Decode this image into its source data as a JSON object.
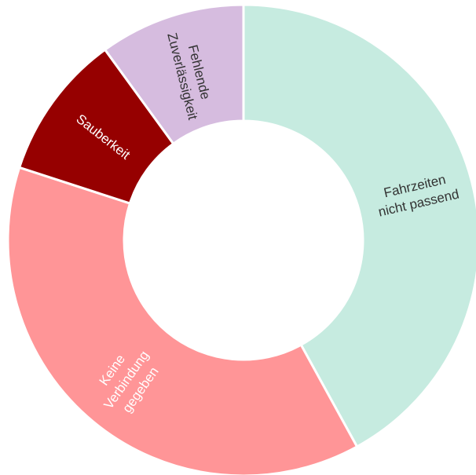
{
  "chart_data": {
    "type": "pie",
    "title": "",
    "slices": [
      {
        "label": [
          "Fahrzeiten",
          "nicht passend"
        ],
        "value": 42,
        "color": "#c6ebe0",
        "text_color": "#333333"
      },
      {
        "label": [
          "Keine",
          "Verbindung",
          "gegeben"
        ],
        "value": 38,
        "color": "#ff9597",
        "text_color": "#ffffff"
      },
      {
        "label": [
          "Sauberkeit"
        ],
        "value": 10,
        "color": "#960000",
        "text_color": "#ffffff"
      },
      {
        "label": [
          "Fehlende",
          "Zuverlässigkeit"
        ],
        "value": 10,
        "color": "#d6bcdf",
        "text_color": "#333333"
      }
    ]
  }
}
